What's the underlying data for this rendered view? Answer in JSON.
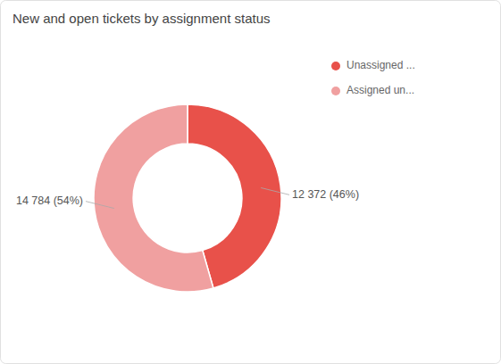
{
  "chart_data": {
    "type": "pie",
    "title": "New and open tickets by assignment status",
    "categories": [
      "Unassigned ...",
      "Assigned un..."
    ],
    "values": [
      12372,
      14784
    ],
    "value_labels": [
      "12 372 (46%)",
      "14 784 (54%)"
    ],
    "colors": [
      "#e8514a",
      "#f0a0a0"
    ],
    "data_labels": true,
    "legend": "right"
  }
}
